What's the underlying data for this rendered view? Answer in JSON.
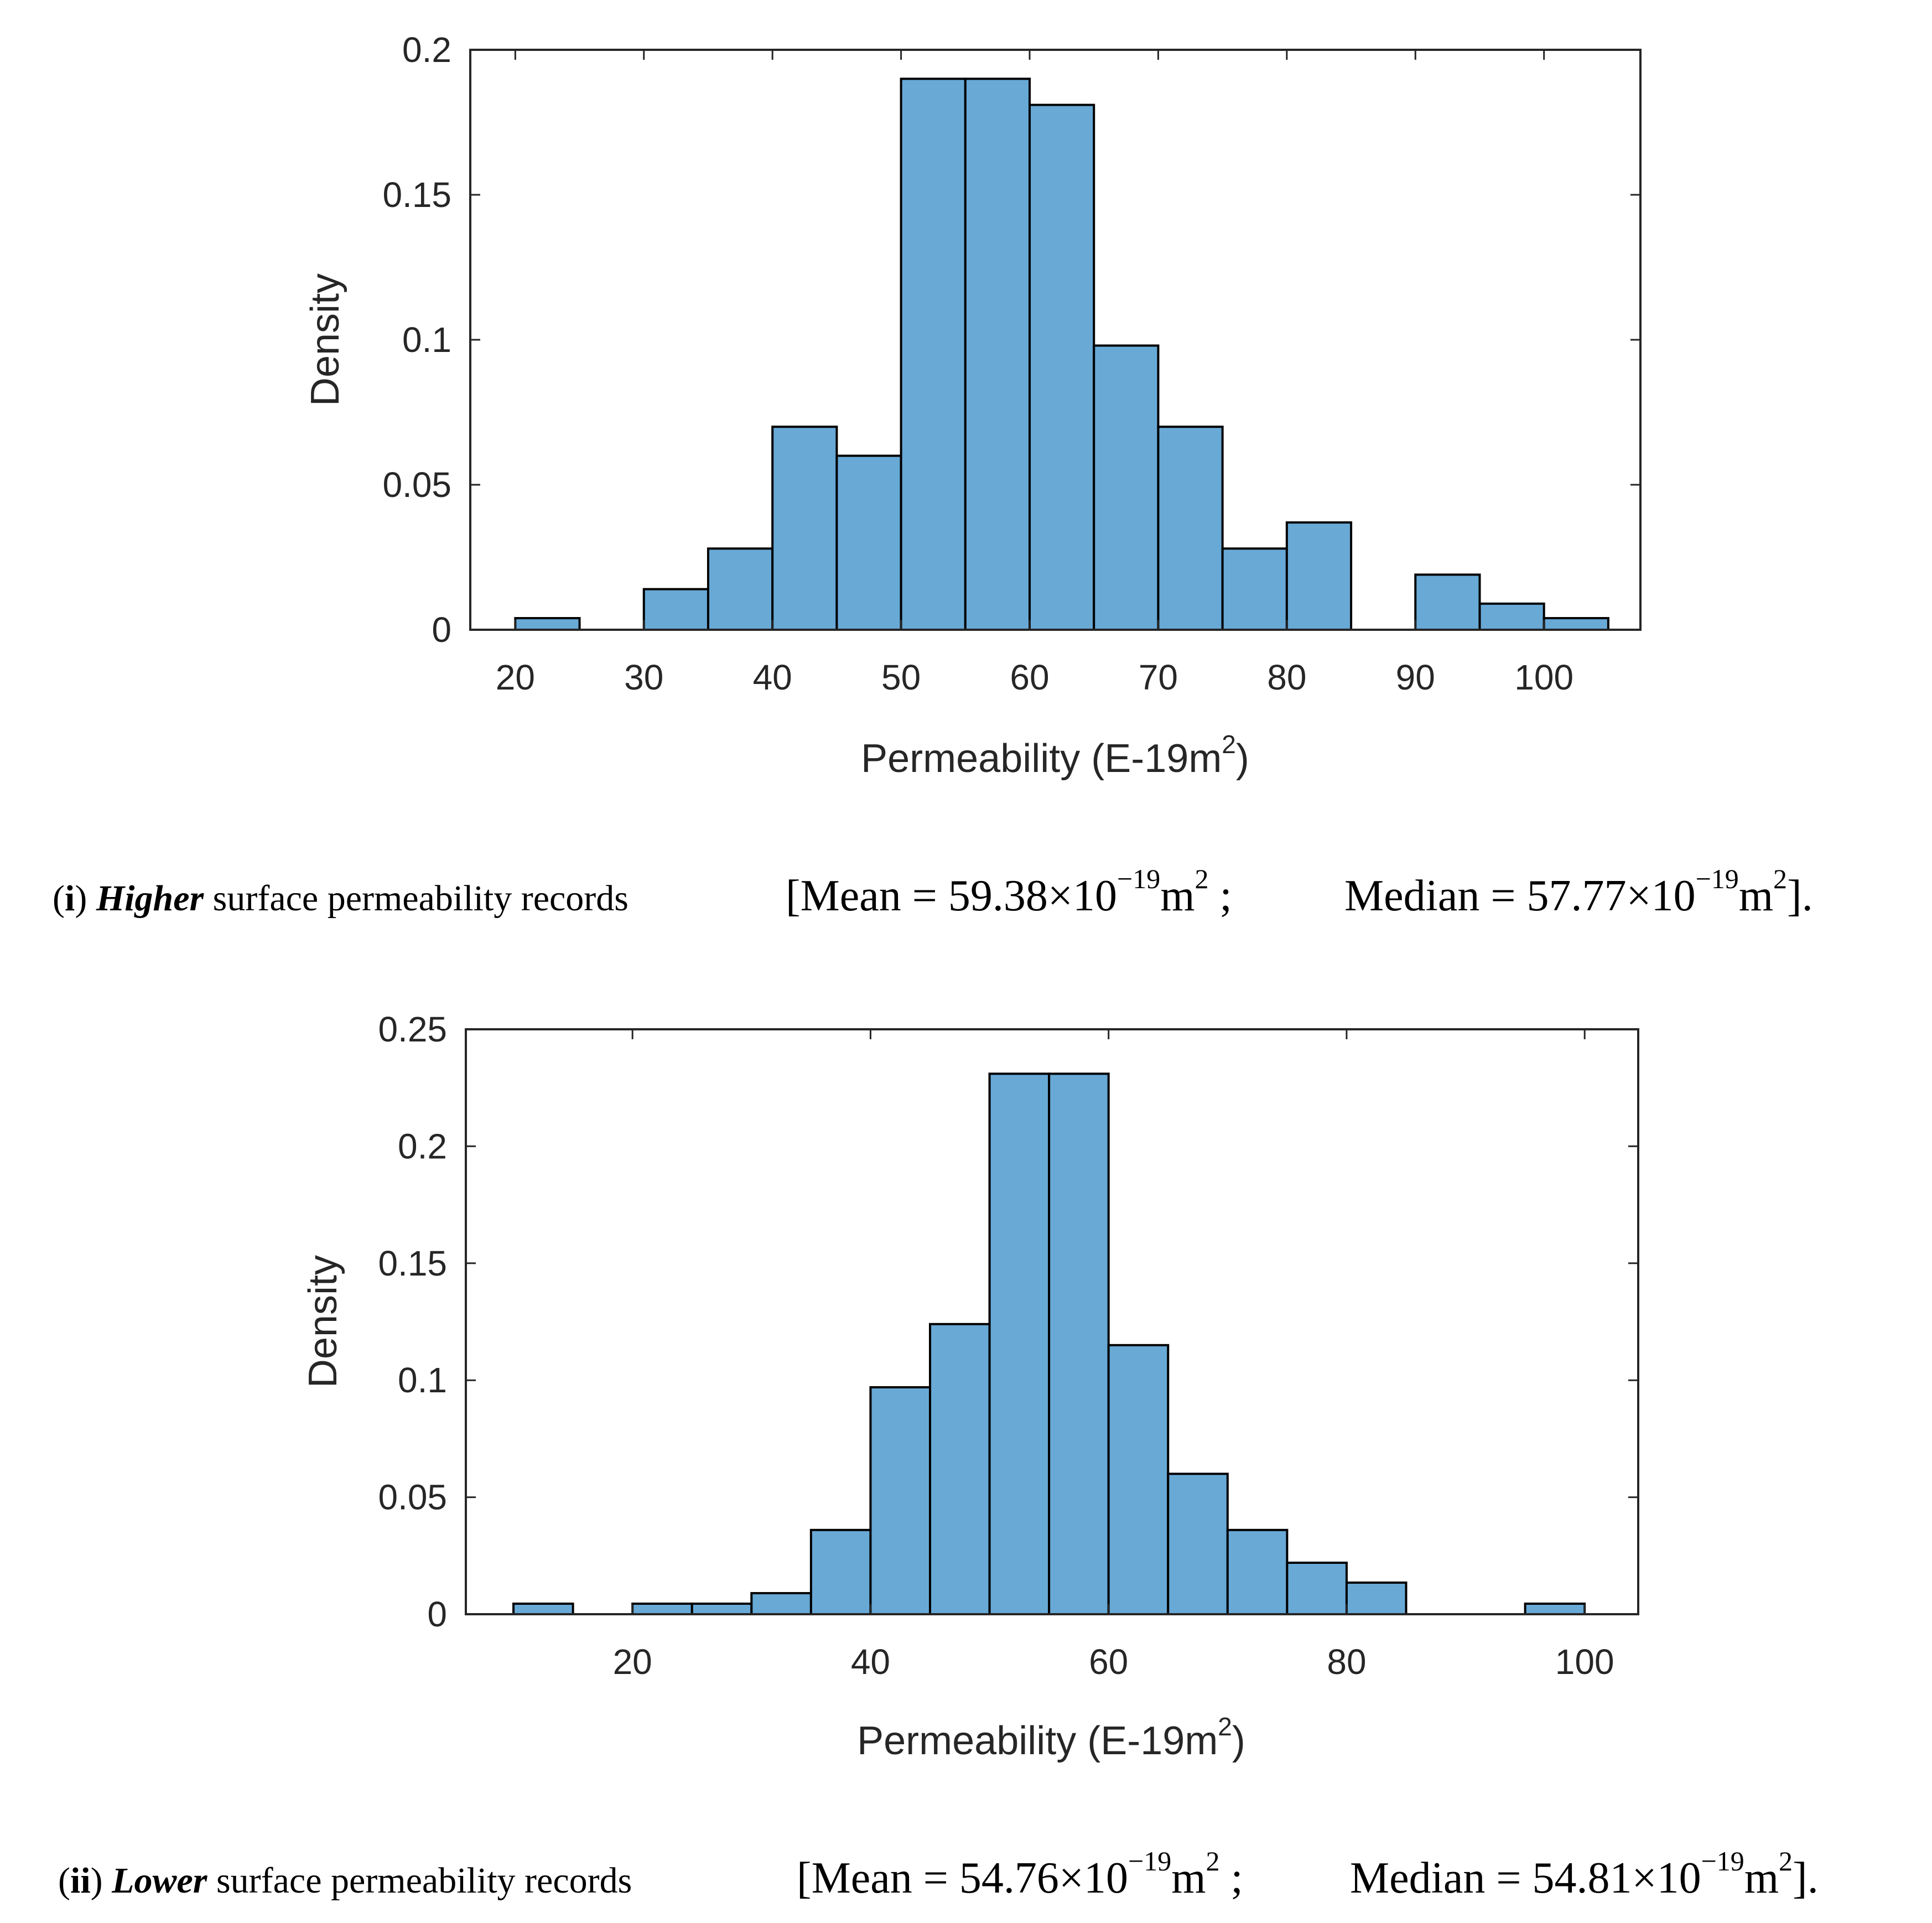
{
  "chart_data": [
    {
      "type": "bar",
      "histogram": true,
      "bin_width": 5,
      "bin_starts": [
        20,
        25,
        30,
        35,
        40,
        45,
        50,
        55,
        60,
        65,
        70,
        75,
        80,
        85,
        90,
        95,
        100
      ],
      "values": [
        0.004,
        0,
        0.014,
        0.028,
        0.07,
        0.06,
        0.19,
        0.19,
        0.181,
        0.098,
        0.07,
        0.028,
        0.037,
        0,
        0.019,
        0.009,
        0.004
      ],
      "xlabel": "Permeability (E-19m",
      "xlabel_sup": "2",
      "xlabel_close": ")",
      "ylabel": "Density",
      "xlim": [
        16.5,
        107.5
      ],
      "ylim": [
        0,
        0.2
      ],
      "xticks": [
        20,
        30,
        40,
        50,
        60,
        70,
        80,
        90,
        100
      ],
      "yticks": [
        0,
        0.05,
        0.1,
        0.15,
        0.2
      ],
      "grid": false,
      "color": "#68a9d6",
      "caption": {
        "label_open": "(",
        "label": "i",
        "label_close": ")",
        "emph": "Higher",
        "text": "surface permeability records",
        "mean_prefix": "[Mean = 59.38×10",
        "mean_exp": "−19",
        "mean_unit": "m",
        "mean_unit_sup": "2",
        "sep": ";",
        "median_prefix": "Median = 57.77×10",
        "median_exp": "−19",
        "median_unit": "m",
        "median_unit_sup": "2",
        "close": "]."
      }
    },
    {
      "type": "bar",
      "histogram": true,
      "bin_width": 5,
      "bin_starts": [
        10,
        15,
        20,
        25,
        30,
        35,
        40,
        45,
        50,
        55,
        60,
        65,
        70,
        75,
        80,
        85,
        90,
        95
      ],
      "values": [
        0.0045,
        0,
        0.0045,
        0.0045,
        0.009,
        0.036,
        0.097,
        0.124,
        0.231,
        0.231,
        0.115,
        0.06,
        0.036,
        0.022,
        0.0135,
        0,
        0,
        0.0045
      ],
      "xlabel": "Permeability (E-19m",
      "xlabel_sup": "2",
      "xlabel_close": ")",
      "ylabel": "Density",
      "xlim": [
        6,
        104.5
      ],
      "ylim": [
        0,
        0.25
      ],
      "xticks": [
        20,
        40,
        60,
        80,
        100
      ],
      "yticks": [
        0,
        0.05,
        0.1,
        0.15,
        0.2,
        0.25
      ],
      "grid": false,
      "color": "#68a9d6",
      "caption": {
        "label_open": "(",
        "label": "ii",
        "label_close": ")",
        "emph": "Lower",
        "text": "surface permeability records",
        "mean_prefix": "[Mean = 54.76×10",
        "mean_exp": "−19",
        "mean_unit": "m",
        "mean_unit_sup": "2",
        "sep": ";",
        "median_prefix": "Median = 54.81×10",
        "median_exp": "−19",
        "median_unit": "m",
        "median_unit_sup": "2",
        "close": "]."
      }
    }
  ]
}
